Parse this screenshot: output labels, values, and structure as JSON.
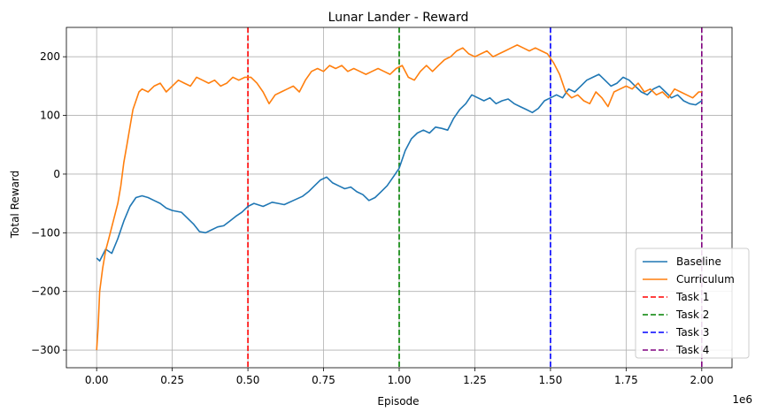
{
  "chart_data": {
    "type": "line",
    "title": "Lunar Lander - Reward",
    "xlabel": "Episode",
    "ylabel": "Total Reward",
    "x_offset_label": "1e6",
    "xlim": [
      -0.1,
      2.1
    ],
    "ylim": [
      -330,
      250
    ],
    "x_ticks": [
      0.0,
      0.25,
      0.5,
      0.75,
      1.0,
      1.25,
      1.5,
      1.75,
      2.0
    ],
    "x_tick_labels": [
      "0.00",
      "0.25",
      "0.50",
      "0.75",
      "1.00",
      "1.25",
      "1.50",
      "1.75",
      "2.00"
    ],
    "y_ticks": [
      -300,
      -200,
      -100,
      0,
      100,
      200
    ],
    "y_tick_labels": [
      "−300",
      "−200",
      "−100",
      "0",
      "100",
      "200"
    ],
    "grid": true,
    "legend_position": "lower-right",
    "series": [
      {
        "name": "Baseline",
        "color": "#1f77b4",
        "x": [
          0.0,
          0.01,
          0.03,
          0.05,
          0.07,
          0.09,
          0.11,
          0.13,
          0.15,
          0.17,
          0.19,
          0.21,
          0.23,
          0.25,
          0.28,
          0.3,
          0.32,
          0.34,
          0.36,
          0.38,
          0.4,
          0.42,
          0.44,
          0.46,
          0.48,
          0.5,
          0.52,
          0.55,
          0.58,
          0.6,
          0.62,
          0.65,
          0.68,
          0.7,
          0.72,
          0.74,
          0.76,
          0.78,
          0.8,
          0.82,
          0.84,
          0.86,
          0.88,
          0.9,
          0.92,
          0.94,
          0.96,
          0.98,
          1.0,
          1.02,
          1.04,
          1.06,
          1.08,
          1.1,
          1.12,
          1.14,
          1.16,
          1.18,
          1.2,
          1.22,
          1.24,
          1.26,
          1.28,
          1.3,
          1.32,
          1.34,
          1.36,
          1.38,
          1.4,
          1.42,
          1.44,
          1.46,
          1.48,
          1.5,
          1.52,
          1.54,
          1.56,
          1.58,
          1.6,
          1.62,
          1.64,
          1.66,
          1.68,
          1.7,
          1.72,
          1.74,
          1.76,
          1.78,
          1.8,
          1.82,
          1.84,
          1.86,
          1.88,
          1.9,
          1.92,
          1.94,
          1.96,
          1.98,
          2.0
        ],
        "y": [
          -143,
          -148,
          -128,
          -135,
          -110,
          -80,
          -55,
          -40,
          -37,
          -40,
          -45,
          -50,
          -58,
          -62,
          -65,
          -75,
          -85,
          -98,
          -100,
          -95,
          -90,
          -88,
          -80,
          -72,
          -65,
          -55,
          -50,
          -55,
          -48,
          -50,
          -52,
          -45,
          -38,
          -30,
          -20,
          -10,
          -5,
          -15,
          -20,
          -25,
          -22,
          -30,
          -35,
          -45,
          -40,
          -30,
          -20,
          -5,
          10,
          40,
          60,
          70,
          75,
          70,
          80,
          78,
          75,
          95,
          110,
          120,
          135,
          130,
          125,
          130,
          120,
          125,
          128,
          120,
          115,
          110,
          105,
          112,
          125,
          130,
          135,
          130,
          145,
          140,
          150,
          160,
          165,
          170,
          160,
          150,
          155,
          165,
          160,
          150,
          140,
          135,
          145,
          150,
          140,
          130,
          135,
          125,
          120,
          118,
          125
        ]
      },
      {
        "name": "Curriculum",
        "color": "#ff7f0e",
        "x": [
          0.0,
          0.005,
          0.01,
          0.02,
          0.03,
          0.04,
          0.05,
          0.06,
          0.07,
          0.08,
          0.09,
          0.1,
          0.11,
          0.12,
          0.13,
          0.14,
          0.15,
          0.17,
          0.19,
          0.21,
          0.23,
          0.25,
          0.27,
          0.29,
          0.31,
          0.33,
          0.35,
          0.37,
          0.39,
          0.41,
          0.43,
          0.45,
          0.47,
          0.49,
          0.51,
          0.53,
          0.55,
          0.57,
          0.59,
          0.61,
          0.63,
          0.65,
          0.67,
          0.69,
          0.71,
          0.73,
          0.75,
          0.77,
          0.79,
          0.81,
          0.83,
          0.85,
          0.87,
          0.89,
          0.91,
          0.93,
          0.95,
          0.97,
          0.99,
          1.01,
          1.03,
          1.05,
          1.07,
          1.09,
          1.11,
          1.13,
          1.15,
          1.17,
          1.19,
          1.21,
          1.23,
          1.25,
          1.27,
          1.29,
          1.31,
          1.33,
          1.35,
          1.37,
          1.39,
          1.41,
          1.43,
          1.45,
          1.47,
          1.49,
          1.51,
          1.53,
          1.55,
          1.57,
          1.59,
          1.61,
          1.63,
          1.65,
          1.67,
          1.69,
          1.71,
          1.73,
          1.75,
          1.77,
          1.79,
          1.81,
          1.83,
          1.85,
          1.87,
          1.89,
          1.91,
          1.93,
          1.95,
          1.97,
          1.99,
          2.0
        ],
        "y": [
          -300,
          -260,
          -200,
          -160,
          -130,
          -110,
          -90,
          -70,
          -50,
          -20,
          20,
          50,
          80,
          110,
          125,
          140,
          145,
          140,
          150,
          155,
          140,
          150,
          160,
          155,
          150,
          165,
          160,
          155,
          160,
          150,
          155,
          165,
          160,
          165,
          165,
          155,
          140,
          120,
          135,
          140,
          145,
          150,
          140,
          160,
          175,
          180,
          175,
          185,
          180,
          185,
          175,
          180,
          175,
          170,
          175,
          180,
          175,
          170,
          180,
          185,
          165,
          160,
          175,
          185,
          175,
          185,
          195,
          200,
          210,
          215,
          205,
          200,
          205,
          210,
          200,
          205,
          210,
          215,
          220,
          215,
          210,
          215,
          210,
          205,
          190,
          170,
          140,
          130,
          135,
          125,
          120,
          140,
          130,
          115,
          140,
          145,
          150,
          145,
          155,
          140,
          145,
          135,
          140,
          130,
          145,
          140,
          135,
          130,
          140,
          140
        ]
      }
    ],
    "vlines": [
      {
        "name": "Task 1",
        "x": 0.5,
        "color": "#ff0000"
      },
      {
        "name": "Task 2",
        "x": 1.0,
        "color": "#008000"
      },
      {
        "name": "Task 3",
        "x": 1.5,
        "color": "#0000ff"
      },
      {
        "name": "Task 4",
        "x": 2.0,
        "color": "#800080"
      }
    ]
  }
}
